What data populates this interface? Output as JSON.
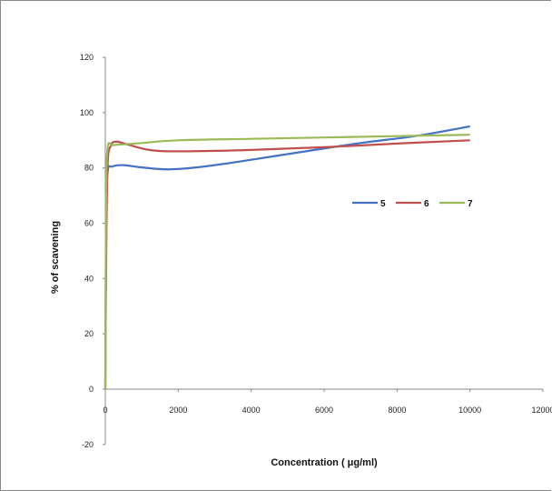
{
  "chart_data": {
    "type": "line",
    "title": "",
    "xlabel": "Concentration ( μg/ml)",
    "ylabel": "% of scavening",
    "xlim": [
      0,
      12000
    ],
    "ylim": [
      -20,
      120
    ],
    "x_ticks": [
      "0",
      "2000",
      "4000",
      "6000",
      "8000",
      "10000",
      "12000"
    ],
    "y_ticks": [
      "-20",
      "0",
      "20",
      "40",
      "60",
      "80",
      "100",
      "120"
    ],
    "grid": false,
    "legend_position": "right-middle",
    "series": [
      {
        "name": "5",
        "color": "#4472c4",
        "points": [
          [
            0,
            0
          ],
          [
            20,
            55
          ],
          [
            60,
            78
          ],
          [
            200,
            80.5
          ],
          [
            500,
            81
          ],
          [
            1000,
            80.2
          ],
          [
            1800,
            79.5
          ],
          [
            3000,
            81
          ],
          [
            5000,
            85
          ],
          [
            7000,
            89
          ],
          [
            8500,
            91.5
          ],
          [
            10000,
            95
          ]
        ]
      },
      {
        "name": "6",
        "color": "#c0504d",
        "points": [
          [
            0,
            0
          ],
          [
            20,
            40
          ],
          [
            60,
            80
          ],
          [
            150,
            88
          ],
          [
            300,
            89.5
          ],
          [
            600,
            88.5
          ],
          [
            1200,
            86.5
          ],
          [
            2000,
            86
          ],
          [
            4000,
            86.5
          ],
          [
            6000,
            87.5
          ],
          [
            8000,
            88.8
          ],
          [
            10000,
            90
          ]
        ]
      },
      {
        "name": "7",
        "color": "#9bbb59",
        "points": [
          [
            0,
            0
          ],
          [
            20,
            65
          ],
          [
            60,
            87
          ],
          [
            200,
            88.2
          ],
          [
            500,
            88.5
          ],
          [
            1000,
            89
          ],
          [
            2000,
            90
          ],
          [
            4000,
            90.5
          ],
          [
            6000,
            91
          ],
          [
            8000,
            91.5
          ],
          [
            10000,
            92
          ]
        ]
      }
    ]
  }
}
